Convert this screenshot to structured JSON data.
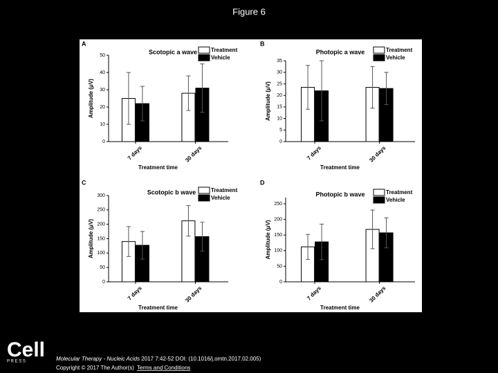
{
  "header": {
    "title": "Figure 6"
  },
  "chart_data": [
    {
      "type": "bar",
      "panel": "A",
      "title": "Scotopic a wave",
      "y_label": "Amplitude (μV)",
      "x_label": "Treatment time",
      "categories": [
        "7 days",
        "30 days"
      ],
      "series": [
        {
          "name": "Treatment",
          "color": "#ffffff",
          "values": [
            25,
            28
          ],
          "errors": [
            15,
            10
          ]
        },
        {
          "name": "Vehicle",
          "color": "#000000",
          "values": [
            22,
            31
          ],
          "errors": [
            10,
            14
          ]
        }
      ],
      "ylim": [
        0,
        50
      ],
      "yticks": [
        0,
        10,
        20,
        30,
        40,
        50
      ]
    },
    {
      "type": "bar",
      "panel": "B",
      "title": "Photopic a wave",
      "y_label": "Amplitude (μV)",
      "x_label": "Treatment time",
      "categories": [
        "7 days",
        "30 days"
      ],
      "series": [
        {
          "name": "Treatment",
          "color": "#ffffff",
          "values": [
            23.5,
            23.5
          ],
          "errors": [
            9.5,
            9
          ]
        },
        {
          "name": "Vehicle",
          "color": "#000000",
          "values": [
            22,
            23
          ],
          "errors": [
            13,
            7
          ]
        }
      ],
      "ylim": [
        0,
        35
      ],
      "yticks": [
        0,
        5,
        10,
        15,
        20,
        25,
        30,
        35
      ]
    },
    {
      "type": "bar",
      "panel": "C",
      "title": "Scotopic b wave",
      "y_label": "Amplitude (μV)",
      "x_label": "Treatment time",
      "categories": [
        "7 days",
        "30 days"
      ],
      "series": [
        {
          "name": "Treatment",
          "color": "#ffffff",
          "values": [
            140,
            212
          ],
          "errors": [
            52,
            53
          ]
        },
        {
          "name": "Vehicle",
          "color": "#000000",
          "values": [
            127,
            157
          ],
          "errors": [
            48,
            50
          ]
        }
      ],
      "ylim": [
        0,
        300
      ],
      "yticks": [
        0,
        50,
        100,
        150,
        200,
        250,
        300
      ]
    },
    {
      "type": "bar",
      "panel": "D",
      "title": "Photopic b wave",
      "y_label": "Amplitude (μV)",
      "x_label": "Treatment time",
      "categories": [
        "7 days",
        "30 days"
      ],
      "series": [
        {
          "name": "Treatment",
          "color": "#ffffff",
          "values": [
            112,
            168
          ],
          "errors": [
            40,
            62
          ]
        },
        {
          "name": "Vehicle",
          "color": "#000000",
          "values": [
            128,
            157
          ],
          "errors": [
            57,
            48
          ]
        }
      ],
      "ylim": [
        0,
        270
      ],
      "yticks": [
        0,
        50,
        100,
        150,
        200,
        250
      ]
    }
  ],
  "footer": {
    "logo": "Cell",
    "logo_sub": "P R E S S",
    "journal": "Molecular Therapy - Nucleic Acids",
    "citation": " 2017 7:42-52 DOI: (10.1016/j.omtn.2017.02.005)",
    "copyright": "Copyright © 2017 The Author(s)",
    "link": "Terms and Conditions"
  }
}
